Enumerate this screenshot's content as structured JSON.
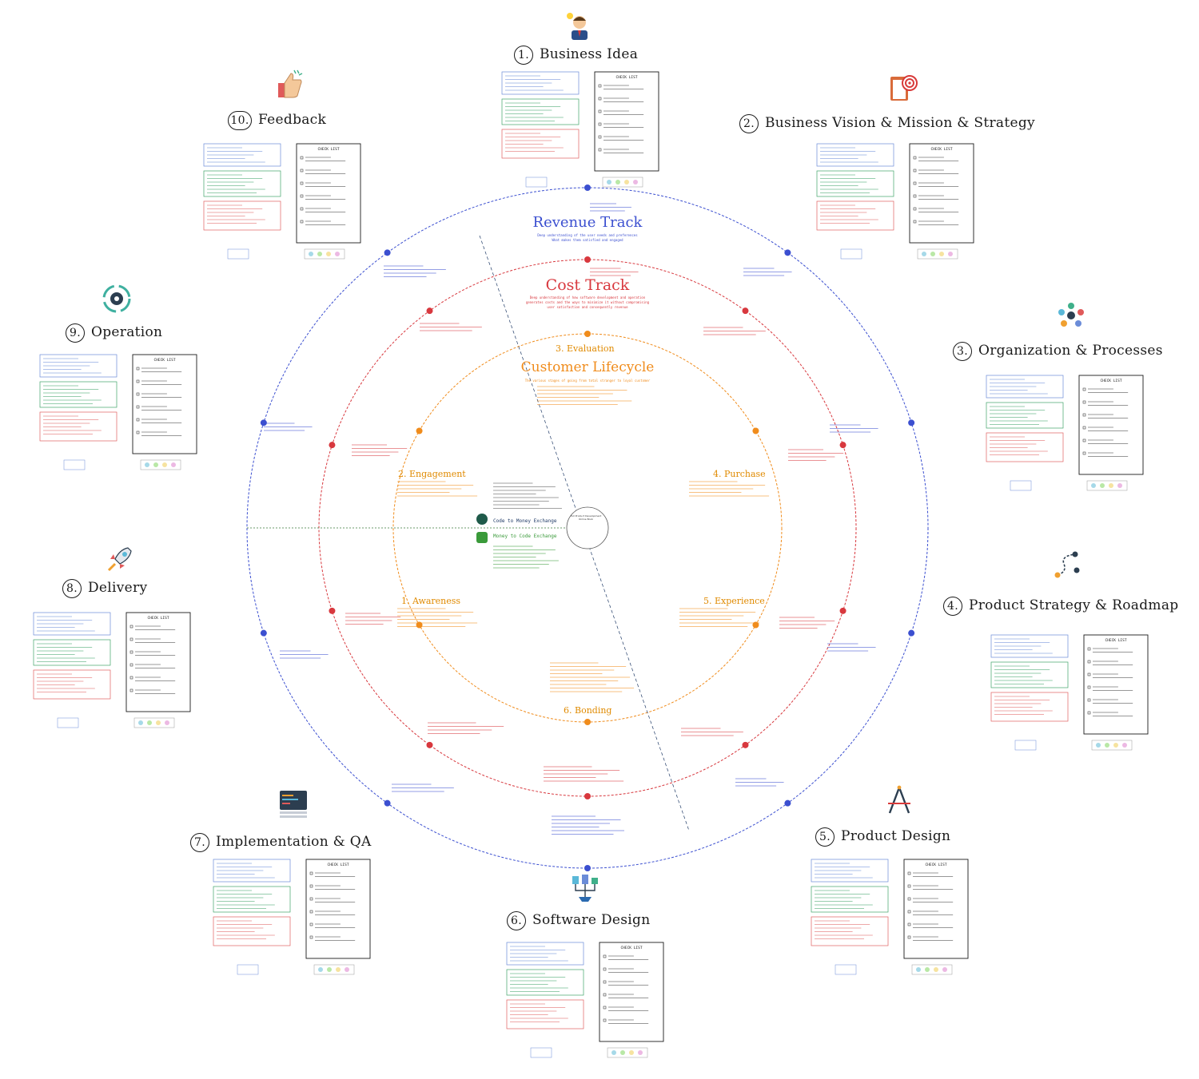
{
  "steps": [
    {
      "num": "1.",
      "label": "Business Idea",
      "icon": "idea-person-icon"
    },
    {
      "num": "2.",
      "label": "Business Vision & Mission & Strategy",
      "icon": "target-clipboard-icon"
    },
    {
      "num": "3.",
      "label": "Organization & Processes",
      "icon": "process-cycle-icon"
    },
    {
      "num": "4.",
      "label": "Product Strategy & Roadmap",
      "icon": "roadmap-icon"
    },
    {
      "num": "5.",
      "label": "Product Design",
      "icon": "design-compass-icon"
    },
    {
      "num": "6.",
      "label": "Software Design",
      "icon": "architecture-icon"
    },
    {
      "num": "7.",
      "label": "Implementation & QA",
      "icon": "code-window-icon"
    },
    {
      "num": "8.",
      "label": "Delivery",
      "icon": "rocket-icon"
    },
    {
      "num": "9.",
      "label": "Operation",
      "icon": "gear-cycle-icon"
    },
    {
      "num": "10.",
      "label": "Feedback",
      "icon": "thumbs-up-icon"
    }
  ],
  "checklist_title": "CHECK LIST",
  "tracks": {
    "revenue": {
      "title": "Revenue Track",
      "subtitle_1": "Deep understanding of the user needs and preferences",
      "subtitle_2": "What makes them satisfied and engaged"
    },
    "cost": {
      "title": "Cost Track",
      "subtitle_1": "Deep understanding of how software development and operation",
      "subtitle_2": "generates costs and the ways to minimize it without compromising",
      "subtitle_3": "user satisfaction and consequently revenue"
    },
    "lifecycle": {
      "title": "Customer Lifecycle",
      "subtitle": "The various stages of going from total stranger to loyal customer"
    }
  },
  "phases": [
    {
      "label": "3. Evaluation"
    },
    {
      "label": "2. Engagement"
    },
    {
      "label": "4. Purchase"
    },
    {
      "label": "1. Awareness"
    },
    {
      "label": "5. Experience"
    },
    {
      "label": "6. Bonding"
    }
  ],
  "center": {
    "code_to_money": "Code to Money Exchange",
    "money_to_code": "Money to Code Exchange",
    "hub_label_1": "Full Product Development",
    "hub_label_2": "Online Book"
  },
  "colors": {
    "revenue": "#3b4fd0",
    "cost": "#d8383e",
    "lifecycle": "#f08c1c",
    "money_to_code": "#3a9a3a",
    "ink": "#1a1a1a",
    "card_blue": "#6b8cd8",
    "card_green": "#3fa46a",
    "card_red": "#e06060"
  }
}
